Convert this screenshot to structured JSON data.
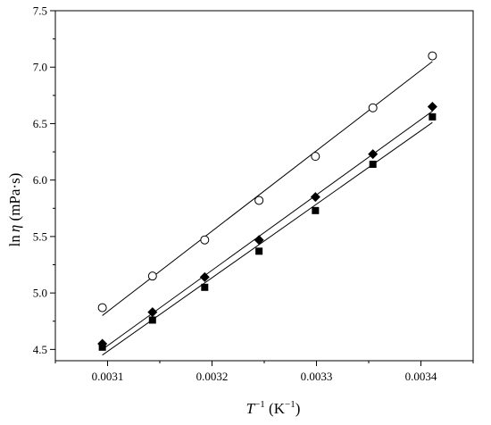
{
  "chart_data": {
    "type": "scatter",
    "xlabel_main": "T",
    "xlabel_sup": "−1",
    "xlabel_unit_open": " (K",
    "xlabel_unit_sup": "−1",
    "xlabel_unit_close": ")",
    "ylabel_prefix": "ln",
    "ylabel_symbol": "η",
    "ylabel_unit": " (mPa·s)",
    "xlim": [
      0.00305,
      0.00345
    ],
    "ylim": [
      4.4,
      7.5
    ],
    "xticks_major": [
      0.0031,
      0.0032,
      0.0033,
      0.0034
    ],
    "xtick_labels": [
      "0.0031",
      "0.0032",
      "0.0033",
      "0.0034"
    ],
    "xticks_minor": [
      0.00305,
      0.00315,
      0.00325,
      0.00335,
      0.00345
    ],
    "yticks_major": [
      4.5,
      5.0,
      5.5,
      6.0,
      6.5,
      7.0,
      7.5
    ],
    "ytick_labels": [
      "4.5",
      "5.0",
      "5.5",
      "6.0",
      "6.5",
      "7.0",
      "7.5"
    ],
    "yticks_minor": [
      4.75,
      5.25,
      5.75,
      6.25,
      6.75,
      7.25
    ],
    "grid": false,
    "series": [
      {
        "marker": "open-circle",
        "x": [
          0.003095,
          0.003143,
          0.003193,
          0.003245,
          0.003299,
          0.003354,
          0.003411
        ],
        "y": [
          4.87,
          5.15,
          5.47,
          5.82,
          6.21,
          6.64,
          7.1
        ],
        "fit": {
          "x": [
            0.003095,
            0.003411
          ],
          "y": [
            4.8,
            7.05
          ]
        }
      },
      {
        "marker": "filled-diamond",
        "x": [
          0.003095,
          0.003143,
          0.003193,
          0.003245,
          0.003299,
          0.003354,
          0.003411
        ],
        "y": [
          4.55,
          4.83,
          5.14,
          5.47,
          5.85,
          6.23,
          6.65
        ],
        "fit": {
          "x": [
            0.003095,
            0.003411
          ],
          "y": [
            4.5,
            6.61
          ]
        }
      },
      {
        "marker": "filled-square",
        "x": [
          0.003095,
          0.003143,
          0.003193,
          0.003245,
          0.003299,
          0.003354,
          0.003411
        ],
        "y": [
          4.52,
          4.76,
          5.05,
          5.37,
          5.73,
          6.14,
          6.56
        ],
        "fit": {
          "x": [
            0.003095,
            0.003411
          ],
          "y": [
            4.45,
            6.51
          ]
        }
      }
    ]
  }
}
